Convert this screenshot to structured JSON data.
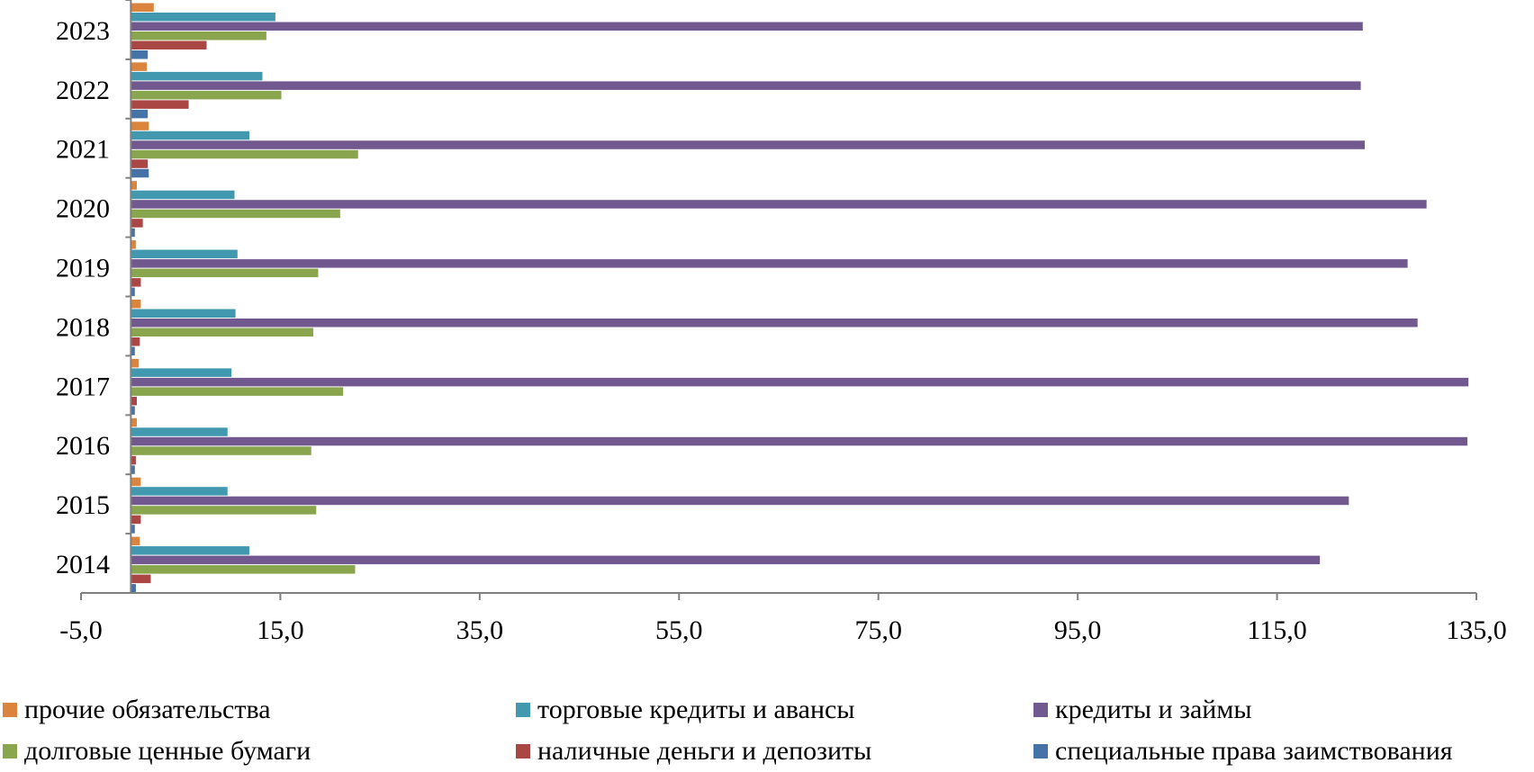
{
  "chart_data": {
    "type": "bar",
    "orientation": "horizontal",
    "categories": [
      "2014",
      "2015",
      "2016",
      "2017",
      "2018",
      "2019",
      "2020",
      "2021",
      "2022",
      "2023"
    ],
    "series": [
      {
        "name": "специальные права заимствования",
        "color": "#4572A7",
        "values": [
          0.5,
          0.4,
          0.4,
          0.4,
          0.4,
          0.4,
          0.4,
          1.8,
          1.7,
          1.7
        ]
      },
      {
        "name": "наличные деньги и депозиты",
        "color": "#AA4643",
        "values": [
          2.0,
          1.0,
          0.5,
          0.6,
          0.9,
          1.0,
          1.2,
          1.7,
          5.8,
          7.6
        ]
      },
      {
        "name": "долговые ценные бумаги",
        "color": "#89A54E",
        "values": [
          22.5,
          18.6,
          18.1,
          21.3,
          18.3,
          18.8,
          21.0,
          22.8,
          15.1,
          13.6
        ]
      },
      {
        "name": "кредиты и займы",
        "color": "#71588F",
        "values": [
          119.3,
          122.2,
          134.1,
          134.2,
          129.1,
          128.1,
          130.0,
          123.8,
          123.4,
          123.6
        ]
      },
      {
        "name": "торговые кредиты и авансы",
        "color": "#4198AF",
        "values": [
          11.9,
          9.7,
          9.7,
          10.1,
          10.5,
          10.7,
          10.4,
          11.9,
          13.2,
          14.5
        ]
      },
      {
        "name": "прочие обязательства",
        "color": "#DB843D",
        "values": [
          0.9,
          1.0,
          0.6,
          0.8,
          1.0,
          0.5,
          0.6,
          1.8,
          1.6,
          2.3
        ]
      }
    ],
    "legend_order": [
      5,
      4,
      3,
      2,
      1,
      0
    ],
    "xlim": [
      -5,
      135
    ],
    "xticks": [
      "-5,0",
      "15,0",
      "35,0",
      "55,0",
      "75,0",
      "95,0",
      "115,0",
      "135,0"
    ],
    "xtick_values": [
      -5,
      15,
      35,
      55,
      75,
      95,
      115,
      135
    ],
    "title": "",
    "xlabel": "",
    "ylabel": "",
    "legend_position": "bottom"
  }
}
